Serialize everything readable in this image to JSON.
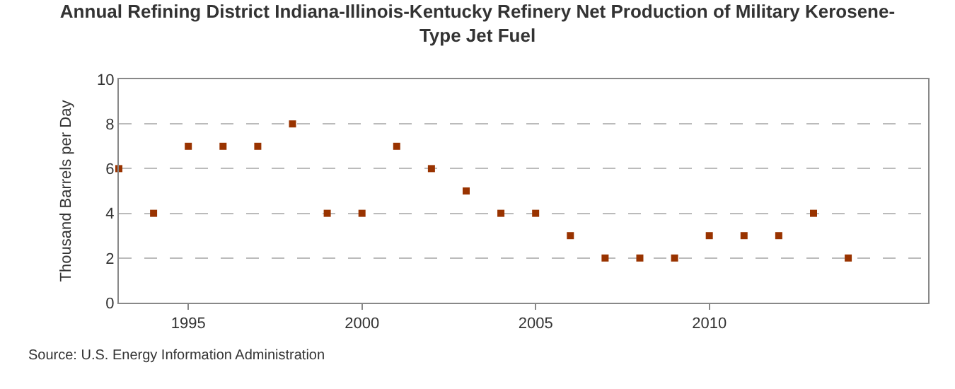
{
  "chart_data": {
    "type": "scatter",
    "title": "Annual Refining District Indiana-Illinois-Kentucky Refinery Net Production of Military Kerosene-Type Jet Fuel",
    "ylabel": "Thousand Barrels per Day",
    "x": [
      1993,
      1994,
      1995,
      1996,
      1997,
      1998,
      1999,
      2000,
      2001,
      2002,
      2003,
      2004,
      2005,
      2006,
      2007,
      2008,
      2009,
      2010,
      2011,
      2012,
      2013,
      2014
    ],
    "series": [
      {
        "color": "#993300",
        "values": [
          6,
          4,
          7,
          7,
          7,
          8,
          4,
          4,
          7,
          6,
          5,
          4,
          4,
          3,
          2,
          2,
          2,
          3,
          3,
          3,
          4,
          2
        ]
      }
    ],
    "xlim": [
      1993,
      2016.3
    ],
    "xticks": [
      1995,
      2000,
      2005,
      2010
    ],
    "ylim": [
      0,
      10
    ],
    "yticks": [
      0,
      2,
      4,
      6,
      8,
      10
    ],
    "grid": "y",
    "marker": "square",
    "annotations": [
      "Source: U.S. Energy Information Administration"
    ]
  }
}
